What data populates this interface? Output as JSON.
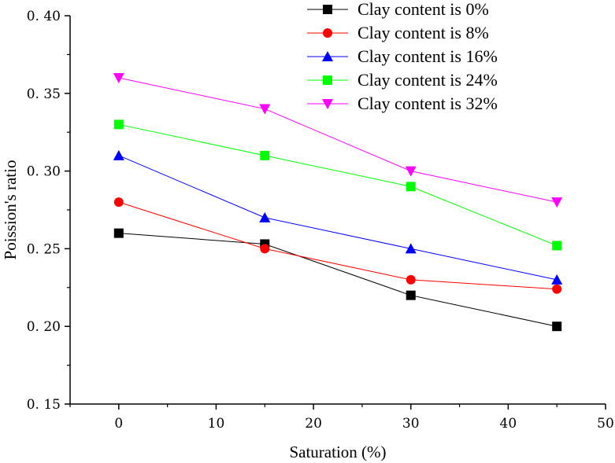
{
  "chart_data": {
    "type": "line",
    "title": "",
    "xlabel": "Saturation (%)",
    "ylabel": "Poission's ratio",
    "xlim": [
      -5,
      50
    ],
    "ylim": [
      0.15,
      0.4
    ],
    "x_ticks": [
      0,
      10,
      20,
      30,
      40,
      50
    ],
    "x_tick_labels": [
      "0",
      "10",
      "20",
      "30",
      "40",
      "50"
    ],
    "y_ticks": [
      0.15,
      0.2,
      0.25,
      0.3,
      0.35,
      0.4
    ],
    "y_tick_labels": [
      "0. 15",
      "0. 20",
      "0. 25",
      "0. 30",
      "0. 35",
      "0. 40"
    ],
    "grid": false,
    "legend_position": "top-right",
    "x": [
      0,
      15,
      30,
      45
    ],
    "series": [
      {
        "name": "Clay content is 0%",
        "color": "#000000",
        "marker": "square",
        "values": [
          0.26,
          0.253,
          0.22,
          0.2
        ]
      },
      {
        "name": "Clay content is 8%",
        "color": "#ff0000",
        "marker": "circle",
        "values": [
          0.28,
          0.25,
          0.23,
          0.224
        ]
      },
      {
        "name": "Clay content is 16%",
        "color": "#0000ff",
        "marker": "triangle-up",
        "values": [
          0.31,
          0.27,
          0.25,
          0.23
        ]
      },
      {
        "name": "Clay content is 24%",
        "color": "#00ff00",
        "marker": "square",
        "values": [
          0.33,
          0.31,
          0.29,
          0.252
        ]
      },
      {
        "name": "Clay content is 32%",
        "color": "#ff00ff",
        "marker": "triangle-down",
        "values": [
          0.36,
          0.34,
          0.3,
          0.28
        ]
      }
    ]
  }
}
